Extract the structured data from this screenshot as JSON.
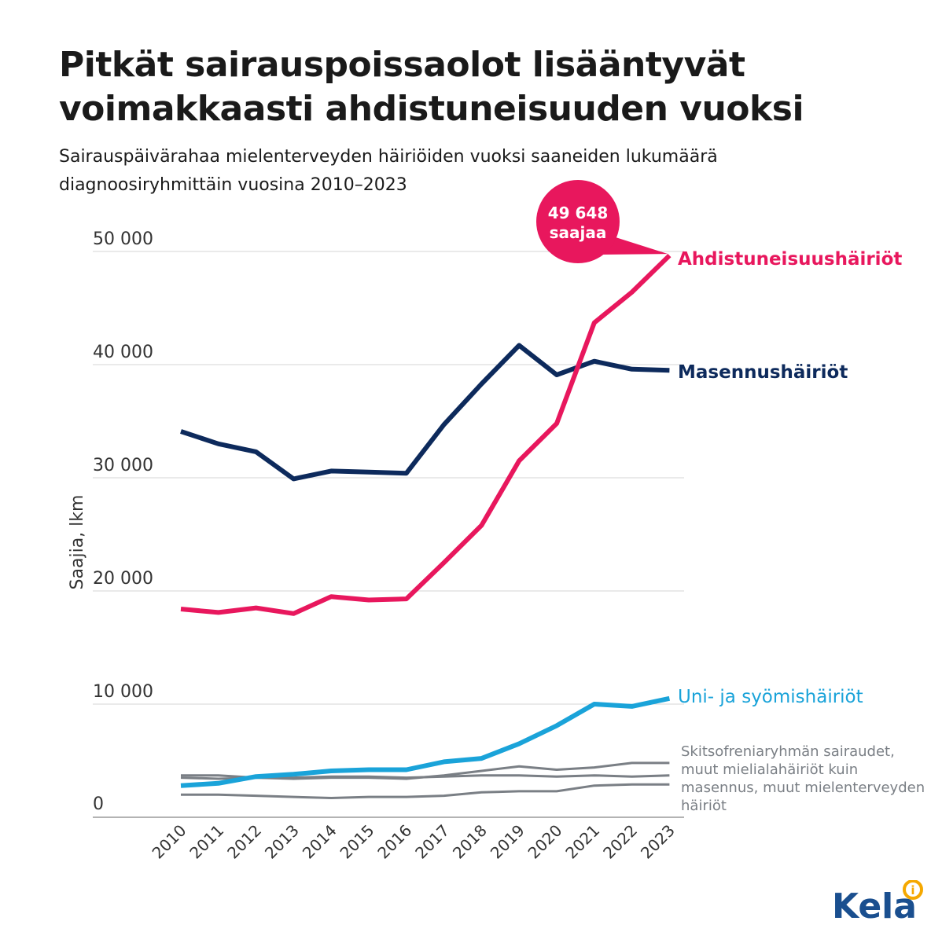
{
  "title_lines": [
    "Pitkät sairauspoissaolot lisääntyvät",
    "voimakkaasti ahdistuneisuuden vuoksi"
  ],
  "subtitle_lines": [
    "Sairauspäivärahaa mielenterveyden häiriöiden vuoksi saaneiden lukumäärä",
    "diagnoosiryhmittäin vuosina 2010–2023"
  ],
  "callout": {
    "line1": "49 648",
    "line2": "saajaa",
    "color": "#e8175d"
  },
  "logo": {
    "text": "Kela",
    "color": "#1a4f8f",
    "accent": "#f5a800"
  },
  "chart_data": {
    "type": "line",
    "ylabel": "Saajia, lkm",
    "ylim": [
      0,
      50000
    ],
    "yticks": [
      0,
      10000,
      20000,
      30000,
      40000,
      50000
    ],
    "ytick_labels": [
      "0",
      "10 000",
      "20 000",
      "30 000",
      "40 000",
      "50 000"
    ],
    "grid": true,
    "x": [
      "2010",
      "2011",
      "2012",
      "2013",
      "2014",
      "2015",
      "2016",
      "2017",
      "2018",
      "2019",
      "2020",
      "2021",
      "2022",
      "2023"
    ],
    "series": [
      {
        "name": "Ahdistuneisuushäiriöt",
        "color": "#e8175d",
        "width": 6,
        "label_lines": [
          "Ahdistuneisuushäiriöt"
        ],
        "values": [
          18400,
          18100,
          18500,
          18000,
          19500,
          19200,
          19300,
          22500,
          25800,
          31500,
          34800,
          43700,
          46400,
          49648
        ]
      },
      {
        "name": "Masennushäiriöt",
        "color": "#0d2a5c",
        "width": 6,
        "label_lines": [
          "Masennushäiriöt"
        ],
        "values": [
          34100,
          33000,
          32300,
          29900,
          30600,
          30500,
          30400,
          34700,
          38300,
          41700,
          39100,
          40300,
          39600,
          39500
        ]
      },
      {
        "name": "Uni- ja syömishäiriöt",
        "color": "#1aa3d9",
        "width": 6,
        "label_lines": [
          "Uni- ja syömishäiriöt"
        ],
        "values": [
          2800,
          3000,
          3600,
          3800,
          4100,
          4200,
          4200,
          4900,
          5200,
          6500,
          8100,
          10000,
          9800,
          10500
        ]
      },
      {
        "name": "Skitsofreniaryhmän sairaudet, muut mielialahäiriöt kuin masennus, muut mielenterveyden häiriöt",
        "color": "#7a7f85",
        "width": 3,
        "label_lines": [
          "Skitsofreniaryhmän sairaudet,",
          "muut mielialahäiriöt kuin",
          "masennus, muut mielenterveyden",
          "häiriöt"
        ],
        "values": [
          3500,
          3400,
          3500,
          3500,
          3600,
          3600,
          3500,
          3600,
          3700,
          3700,
          3600,
          3700,
          3600,
          3700
        ]
      },
      {
        "name": "",
        "color": "#7a7f85",
        "width": 3,
        "values": [
          3700,
          3700,
          3500,
          3400,
          3500,
          3500,
          3400,
          3700,
          4100,
          4500,
          4200,
          4400,
          4800,
          4800
        ]
      },
      {
        "name": "",
        "color": "#7a7f85",
        "width": 3,
        "values": [
          2000,
          2000,
          1900,
          1800,
          1700,
          1800,
          1800,
          1900,
          2200,
          2300,
          2300,
          2800,
          2900,
          2900
        ]
      }
    ]
  }
}
